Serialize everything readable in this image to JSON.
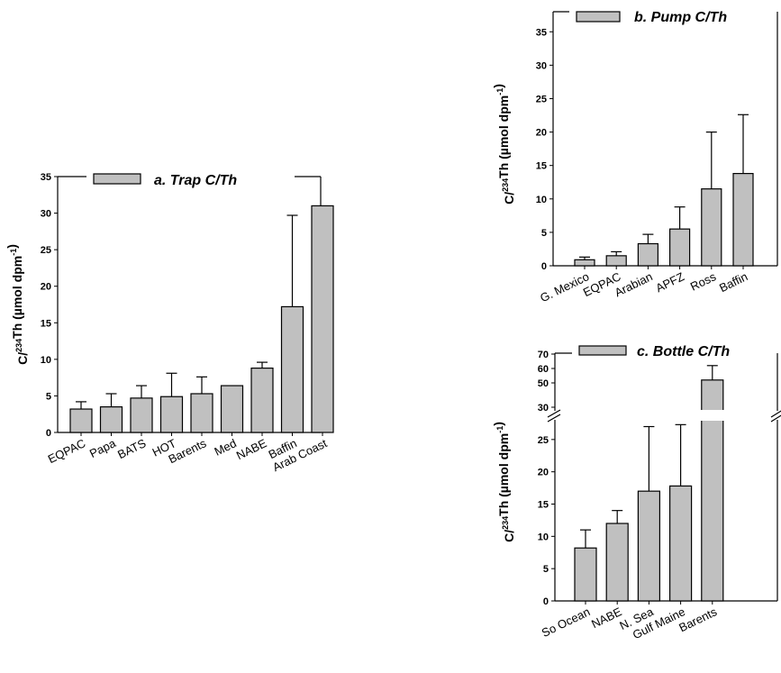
{
  "chart_data": [
    {
      "type": "bar",
      "legend": "a. Trap C/Th",
      "ylabel_prefix": "C/",
      "ylabel_sup_iso": "234",
      "ylabel_mid": "Th (µmol dpm",
      "ylabel_sup_exp": "-1",
      "ylabel_suffix": ")",
      "ylim": [
        0,
        35
      ],
      "yticks": [
        0,
        5,
        10,
        15,
        20,
        25,
        30,
        35
      ],
      "categories": [
        "EQPAC",
        "Papa",
        "BATS",
        "HOT",
        "Barents",
        "Med",
        "NABE",
        "Baffin",
        "Arab Coast"
      ],
      "values": [
        3.2,
        3.5,
        4.7,
        4.9,
        5.3,
        6.4,
        8.8,
        17.2,
        31.0
      ],
      "errors": [
        1.0,
        1.8,
        1.7,
        3.2,
        2.3,
        null,
        0.8,
        12.5,
        null
      ],
      "bar_color": "#c0c0c0"
    },
    {
      "type": "bar",
      "legend": "b. Pump C/Th",
      "ylabel_prefix": "C/",
      "ylabel_sup_iso": "234",
      "ylabel_mid": "Th (µmol dpm",
      "ylabel_sup_exp": "-1",
      "ylabel_suffix": ")",
      "ylim": [
        0,
        38
      ],
      "yticks": [
        0,
        5,
        10,
        15,
        20,
        25,
        30,
        35
      ],
      "categories": [
        "G. Mexico",
        "EQPAC",
        "Arabian",
        "APFZ",
        "Ross",
        "Baffin"
      ],
      "values": [
        0.9,
        1.5,
        3.3,
        5.5,
        11.5,
        13.8
      ],
      "errors": [
        0.4,
        0.6,
        1.4,
        3.3,
        8.5,
        8.8
      ],
      "bar_color": "#c0c0c0"
    },
    {
      "type": "bar",
      "legend": "c. Bottle C/Th",
      "ylabel_prefix": "C/",
      "ylabel_sup_iso": "234",
      "ylabel_mid": "Th (µmol dpm",
      "ylabel_sup_exp": "-1",
      "ylabel_suffix": ")",
      "ylim": [
        0,
        70
      ],
      "axis_break": [
        30,
        50
      ],
      "yticks": [
        0,
        5,
        10,
        15,
        20,
        25,
        30,
        50,
        60,
        70
      ],
      "categories": [
        "So Ocean",
        "NABE",
        "N. Sea",
        "Gulf Maine",
        "Barents"
      ],
      "values": [
        8.2,
        12.0,
        17.0,
        17.8,
        52.0
      ],
      "errors": [
        2.8,
        2.0,
        10.0,
        9.5,
        10.0
      ],
      "bar_color": "#c0c0c0"
    }
  ]
}
